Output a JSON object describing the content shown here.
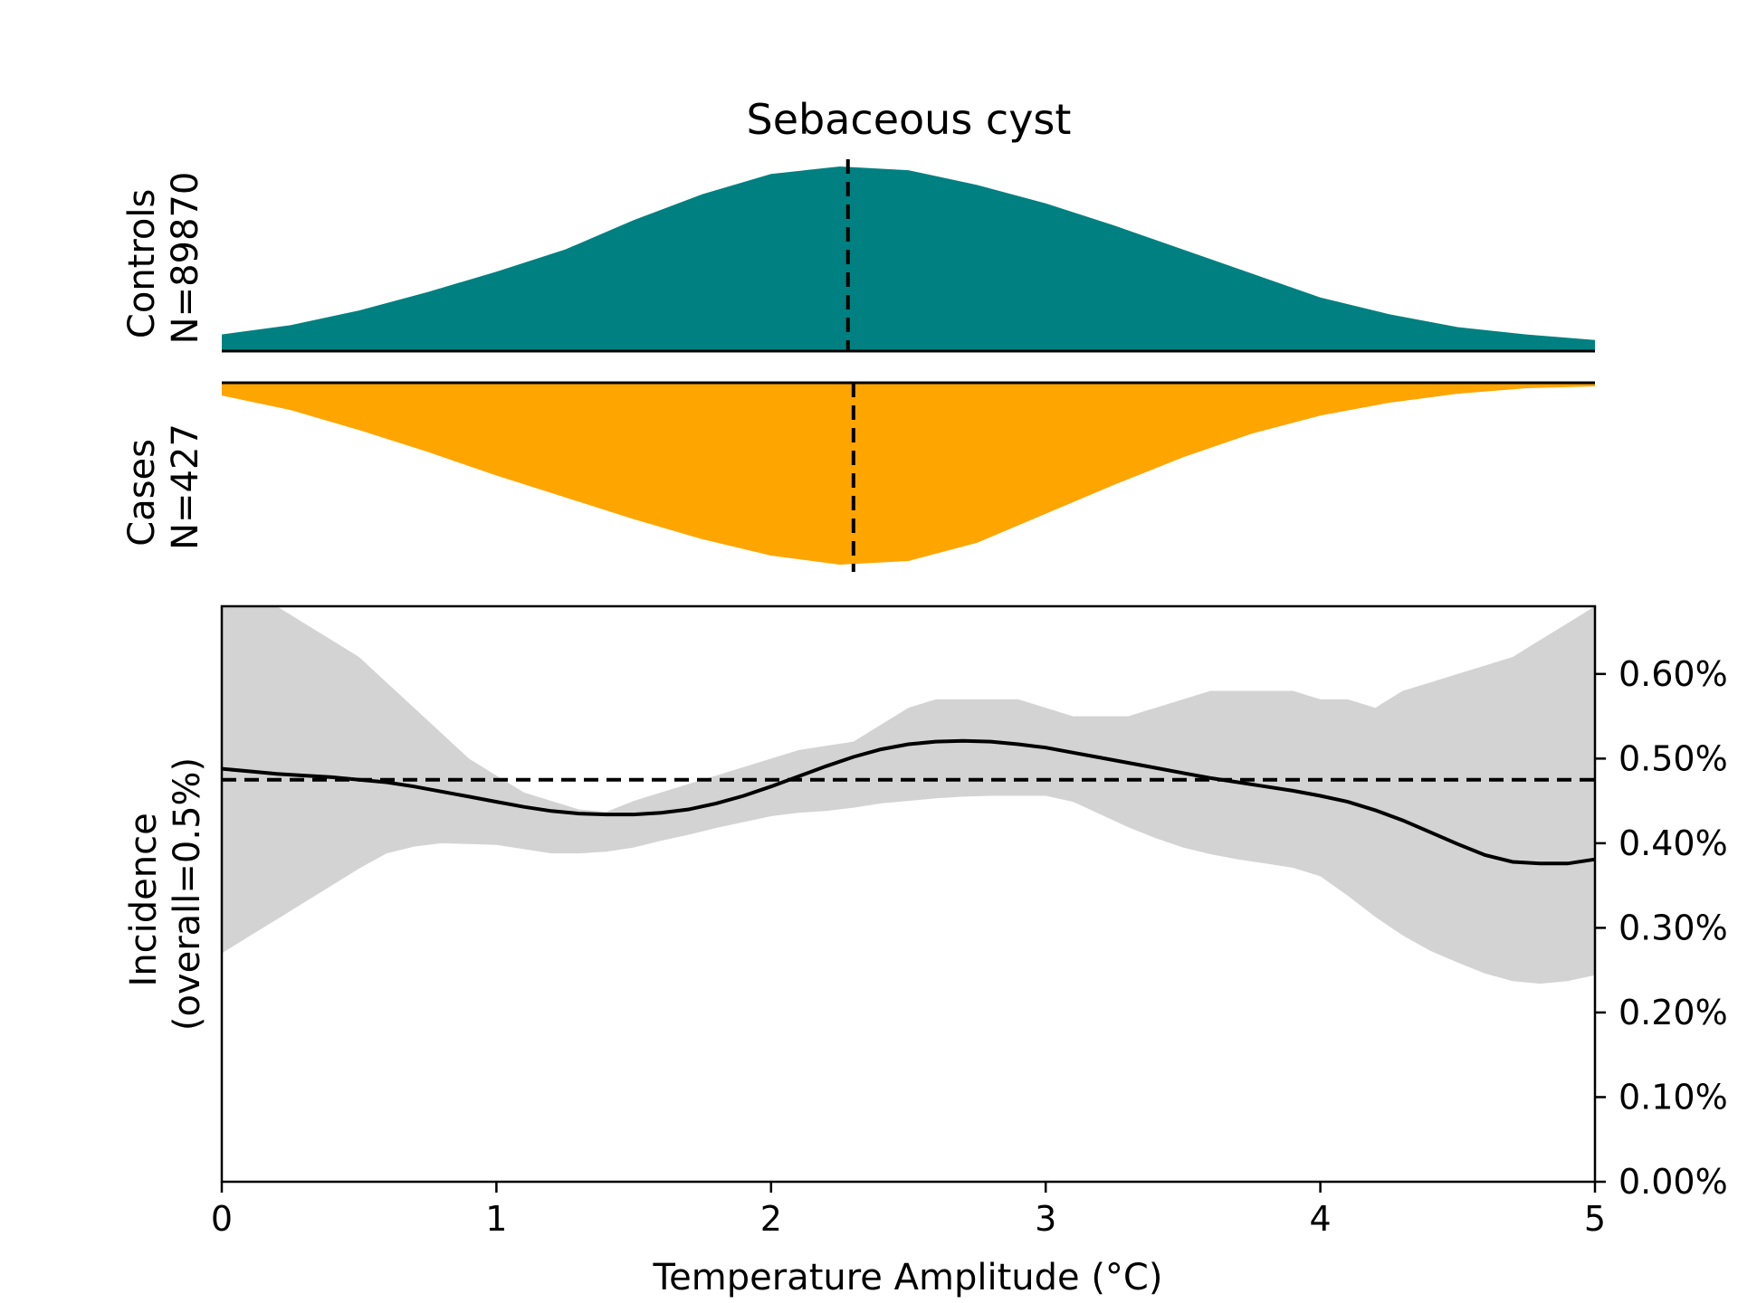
{
  "chart_data": {
    "type": "area",
    "title": "Sebaceous cyst",
    "xlabel": "Temperature Amplitude (°C)",
    "xlim": [
      0,
      5
    ],
    "x_ticks": [
      0,
      1,
      2,
      3,
      4,
      5
    ],
    "x_tick_labels": [
      "0",
      "1",
      "2",
      "3",
      "4",
      "5"
    ],
    "controls": {
      "label_line1": "Controls",
      "label_line2": "N=89870",
      "color": "#008080",
      "median": 2.28,
      "x": [
        0,
        0.25,
        0.5,
        0.75,
        1.0,
        1.25,
        1.5,
        1.75,
        2.0,
        2.25,
        2.5,
        2.75,
        3.0,
        3.25,
        3.5,
        3.75,
        4.0,
        4.25,
        4.5,
        4.75,
        5.0
      ],
      "density": [
        0.09,
        0.14,
        0.22,
        0.32,
        0.43,
        0.55,
        0.71,
        0.85,
        0.96,
        1.0,
        0.98,
        0.9,
        0.8,
        0.68,
        0.55,
        0.42,
        0.29,
        0.2,
        0.13,
        0.09,
        0.06
      ]
    },
    "cases": {
      "label_line1": "Cases",
      "label_line2": "N=427",
      "color": "#FFA500",
      "median": 2.3,
      "x": [
        0,
        0.25,
        0.5,
        0.75,
        1.0,
        1.25,
        1.5,
        1.75,
        2.0,
        2.25,
        2.5,
        2.75,
        3.0,
        3.25,
        3.5,
        3.75,
        4.0,
        4.25,
        4.5,
        4.75,
        5.0
      ],
      "density": [
        0.07,
        0.15,
        0.26,
        0.38,
        0.51,
        0.63,
        0.75,
        0.86,
        0.95,
        1.0,
        0.98,
        0.88,
        0.72,
        0.56,
        0.41,
        0.28,
        0.18,
        0.11,
        0.06,
        0.03,
        0.02
      ]
    },
    "incidence": {
      "ylabel_line1": "Incidence",
      "ylabel_line2": "(overall=0.5%)",
      "ylim": [
        0,
        0.0068
      ],
      "y_ticks": [
        0,
        0.001,
        0.002,
        0.003,
        0.004,
        0.005,
        0.006
      ],
      "y_tick_labels": [
        "0.00%",
        "0.10%",
        "0.20%",
        "0.30%",
        "0.40%",
        "0.50%",
        "0.60%"
      ],
      "overall": 0.00475,
      "line_color": "#000000",
      "band_color": "#d3d3d3",
      "x": [
        0,
        0.1,
        0.2,
        0.3,
        0.4,
        0.5,
        0.6,
        0.7,
        0.8,
        0.9,
        1.0,
        1.1,
        1.2,
        1.3,
        1.4,
        1.5,
        1.6,
        1.7,
        1.8,
        1.9,
        2.0,
        2.1,
        2.2,
        2.3,
        2.4,
        2.5,
        2.6,
        2.7,
        2.8,
        2.9,
        3.0,
        3.1,
        3.2,
        3.3,
        3.4,
        3.5,
        3.6,
        3.7,
        3.8,
        3.9,
        4.0,
        4.1,
        4.2,
        4.3,
        4.4,
        4.5,
        4.6,
        4.7,
        4.8,
        4.9,
        5.0
      ],
      "y": [
        0.00488,
        0.00485,
        0.00482,
        0.0048,
        0.00478,
        0.00475,
        0.00472,
        0.00467,
        0.00461,
        0.00455,
        0.00449,
        0.00443,
        0.00438,
        0.00435,
        0.00434,
        0.00434,
        0.00436,
        0.0044,
        0.00447,
        0.00456,
        0.00467,
        0.00479,
        0.00491,
        0.00502,
        0.00511,
        0.00517,
        0.0052,
        0.00521,
        0.0052,
        0.00517,
        0.00513,
        0.00507,
        0.00501,
        0.00495,
        0.00489,
        0.00483,
        0.00477,
        0.00472,
        0.00467,
        0.00462,
        0.00456,
        0.00449,
        0.00439,
        0.00427,
        0.00413,
        0.00399,
        0.00386,
        0.00378,
        0.00376,
        0.00376,
        0.00381
      ],
      "upper": [
        0.0068,
        0.0068,
        0.0068,
        0.0066,
        0.0064,
        0.0062,
        0.0059,
        0.0056,
        0.0053,
        0.005,
        0.0048,
        0.0046,
        0.0045,
        0.0044,
        0.00437,
        0.0045,
        0.0046,
        0.0047,
        0.0048,
        0.0049,
        0.005,
        0.0051,
        0.00515,
        0.0052,
        0.0054,
        0.0056,
        0.0057,
        0.0057,
        0.0057,
        0.0057,
        0.0056,
        0.0055,
        0.0055,
        0.0055,
        0.0056,
        0.0057,
        0.0058,
        0.0058,
        0.0058,
        0.0058,
        0.0057,
        0.0057,
        0.0056,
        0.0058,
        0.0059,
        0.006,
        0.0061,
        0.0062,
        0.0064,
        0.0066,
        0.0068
      ],
      "lower": [
        0.0027,
        0.0029,
        0.0031,
        0.0033,
        0.0035,
        0.0037,
        0.00388,
        0.00396,
        0.004,
        0.00399,
        0.00398,
        0.00393,
        0.00388,
        0.00388,
        0.0039,
        0.00395,
        0.00403,
        0.0041,
        0.00418,
        0.00425,
        0.00432,
        0.00436,
        0.00438,
        0.00442,
        0.00447,
        0.0045,
        0.00453,
        0.00455,
        0.00456,
        0.00456,
        0.00456,
        0.00449,
        0.00434,
        0.00419,
        0.00406,
        0.00395,
        0.00387,
        0.00381,
        0.00376,
        0.00371,
        0.00361,
        0.00338,
        0.00313,
        0.00291,
        0.00273,
        0.00259,
        0.00246,
        0.00237,
        0.00234,
        0.00237,
        0.00244
      ]
    }
  }
}
